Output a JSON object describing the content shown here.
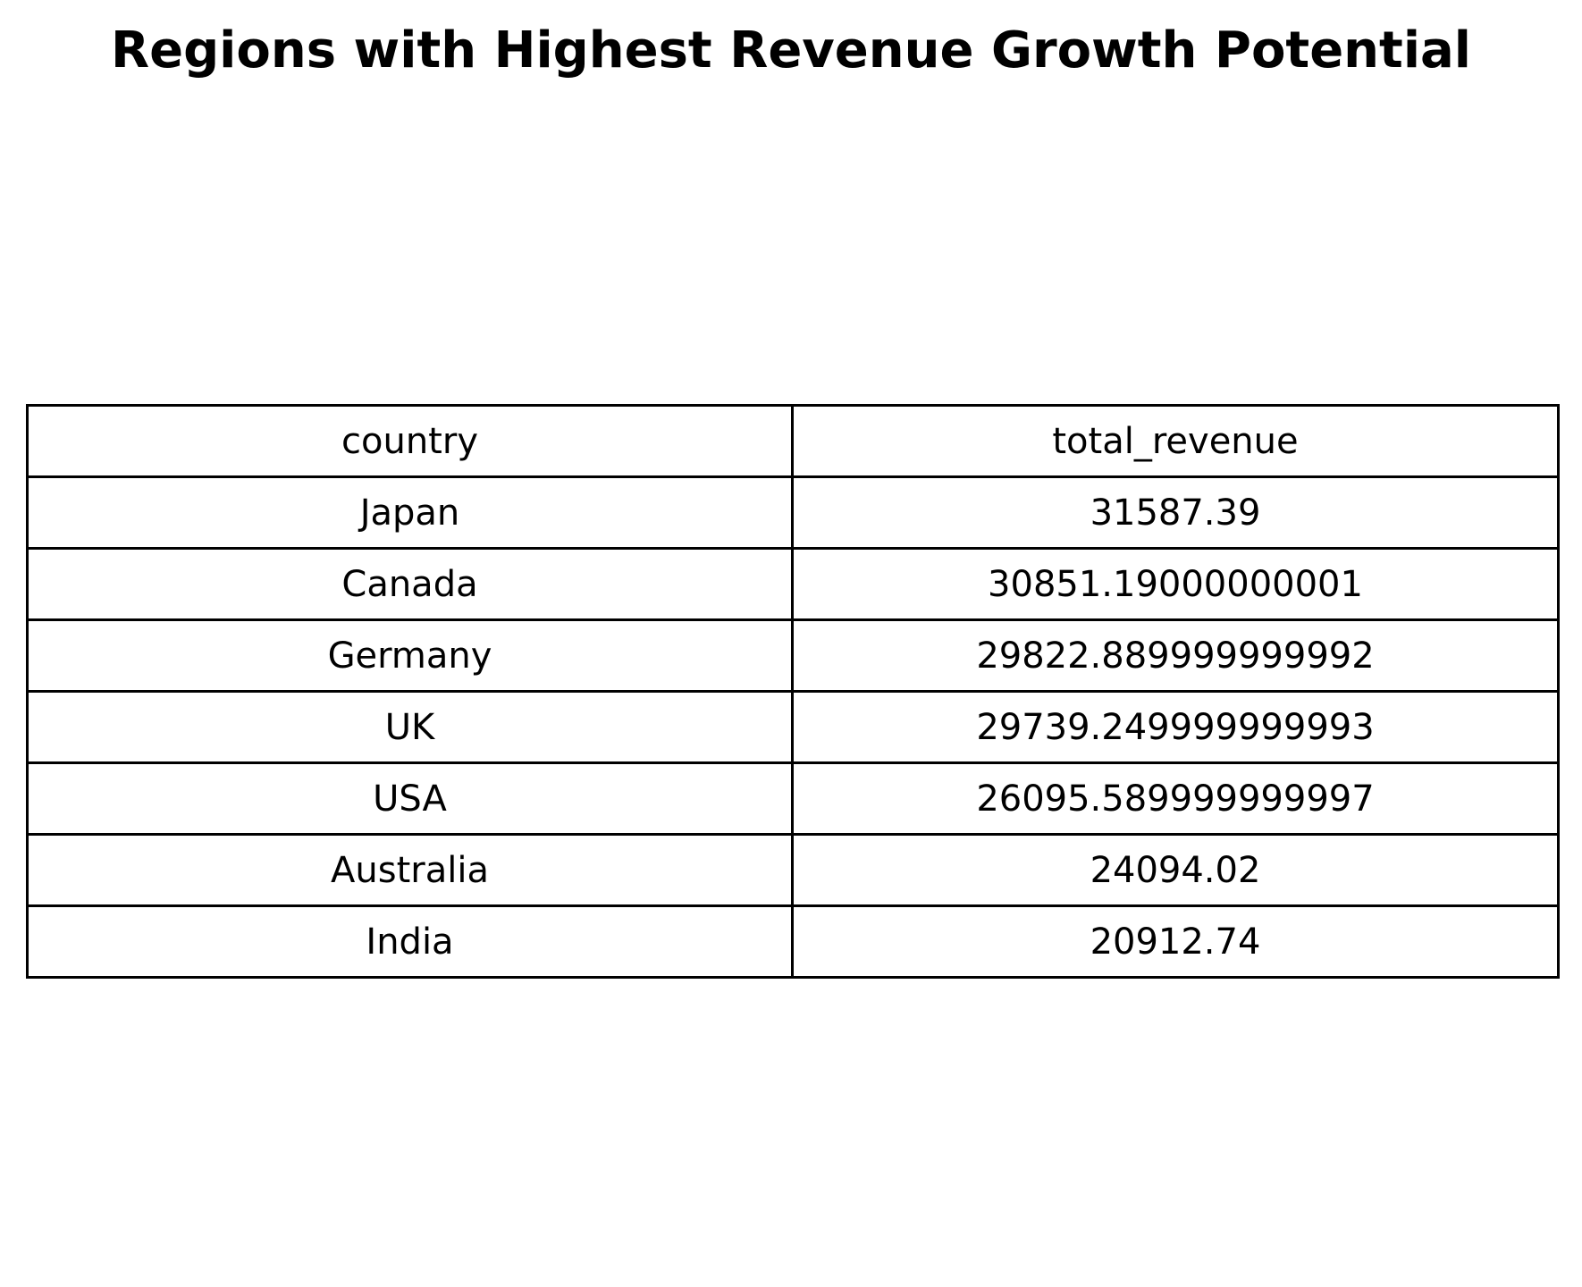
{
  "chart_data": {
    "type": "table",
    "title": "Regions with Highest Revenue Growth Potential",
    "columns": [
      "country",
      "total_revenue"
    ],
    "rows": [
      [
        "Japan",
        "31587.39"
      ],
      [
        "Canada",
        "30851.19000000001"
      ],
      [
        "Germany",
        "29822.889999999992"
      ],
      [
        "UK",
        "29739.249999999993"
      ],
      [
        "USA",
        "26095.589999999997"
      ],
      [
        "Australia",
        "24094.02"
      ],
      [
        "India",
        "20912.74"
      ]
    ]
  }
}
